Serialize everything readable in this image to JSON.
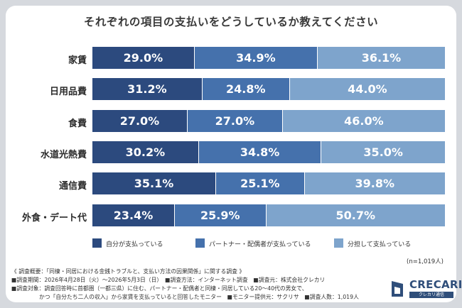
{
  "chart_data": {
    "type": "bar",
    "stacked": true,
    "orientation": "horizontal",
    "title": "それぞれの項目の支払いをどうしているか教えてください",
    "categories": [
      "家賃",
      "日用品費",
      "食費",
      "水道光熱費",
      "通信費",
      "外食・デート代"
    ],
    "series": [
      {
        "name": "自分が支払っている",
        "color": "#2c4a7e",
        "values": [
          29.0,
          31.2,
          27.0,
          30.2,
          35.1,
          23.4
        ]
      },
      {
        "name": "パートナー・配偶者が支払っている",
        "color": "#4571ac",
        "values": [
          34.9,
          24.8,
          27.0,
          34.8,
          25.1,
          25.9
        ]
      },
      {
        "name": "分担して支払っている",
        "color": "#7ea4cc",
        "values": [
          36.1,
          44.0,
          46.0,
          35.0,
          39.8,
          50.7
        ]
      }
    ],
    "value_suffix": "%",
    "legend_position": "bottom",
    "grid": false
  },
  "n_label": "(n=1,019人)",
  "notes": [
    "《 調査概要：「同棲・同居における金銭トラブルと、支払い方法の因果関係」に関する調査 》",
    "■調査期間：2026年4月28日（火）〜2026年5月3日（日）　■調査方法：インターネット調査　■調査元：株式会社クレカリ",
    "■調査対象：調査回答時に首都圏（一都三県）に住む、パートナー・配偶者と同棲・同居している20〜40代の男女で、",
    "　　　　　かつ「自分たち二人の収入」から家賃を支払っていると回答したモニター　■モニター提供元：サクリサ　■調査人数：1,019人"
  ],
  "logo": {
    "name": "CRECARI",
    "subtitle": "クレカリ通信",
    "color": "#2f4e7a"
  }
}
